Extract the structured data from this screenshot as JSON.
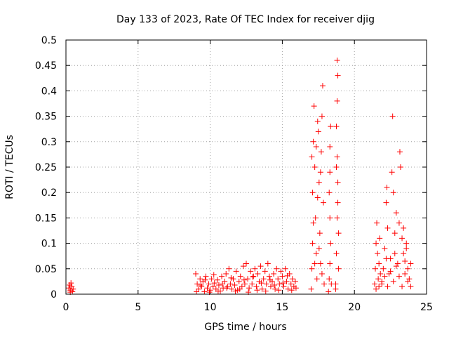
{
  "chart_data": {
    "type": "scatter",
    "title": "Day 133 of 2023, Rate Of TEC Index for receiver djig",
    "xlabel": "GPS time / hours",
    "ylabel": "ROTI / TECUs",
    "xlim": [
      0,
      25
    ],
    "ylim": [
      0,
      0.5
    ],
    "x_ticks": [
      "0",
      "5",
      "10",
      "15",
      "20",
      "25"
    ],
    "y_ticks": [
      "0",
      "0.05",
      "0.1",
      "0.15",
      "0.2",
      "0.25",
      "0.3",
      "0.35",
      "0.4",
      "0.45",
      "0.5"
    ],
    "grid": true,
    "marker": "+",
    "color": "#ff0000",
    "series": [
      {
        "points": [
          [
            0.2,
            0.012
          ],
          [
            0.25,
            0.018
          ],
          [
            0.3,
            0.008
          ],
          [
            0.35,
            0.022
          ],
          [
            0.4,
            0.015
          ],
          [
            0.45,
            0.005
          ],
          [
            0.5,
            0.01
          ],
          [
            0.3,
            0.004
          ],
          [
            9.0,
            0.04
          ],
          [
            9.1,
            0.02
          ],
          [
            9.2,
            0.01
          ],
          [
            9.3,
            0.03
          ],
          [
            9.4,
            0.015
          ],
          [
            9.5,
            0.025
          ],
          [
            9.6,
            0.005
          ],
          [
            9.7,
            0.035
          ],
          [
            9.8,
            0.012
          ],
          [
            9.9,
            0.02
          ],
          [
            10.0,
            0.008
          ],
          [
            10.1,
            0.03
          ],
          [
            10.2,
            0.015
          ],
          [
            10.3,
            0.022
          ],
          [
            10.4,
            0.01
          ],
          [
            10.5,
            0.028
          ],
          [
            10.6,
            0.018
          ],
          [
            10.7,
            0.006
          ],
          [
            10.8,
            0.035
          ],
          [
            10.9,
            0.012
          ],
          [
            11.0,
            0.025
          ],
          [
            11.1,
            0.04
          ],
          [
            11.2,
            0.015
          ],
          [
            11.3,
            0.05
          ],
          [
            11.4,
            0.02
          ],
          [
            11.5,
            0.01
          ],
          [
            11.6,
            0.03
          ],
          [
            11.7,
            0.018
          ],
          [
            11.8,
            0.045
          ],
          [
            11.9,
            0.008
          ],
          [
            12.0,
            0.025
          ],
          [
            12.1,
            0.035
          ],
          [
            12.2,
            0.015
          ],
          [
            12.3,
            0.055
          ],
          [
            12.4,
            0.02
          ],
          [
            12.5,
            0.06
          ],
          [
            12.6,
            0.03
          ],
          [
            12.7,
            0.012
          ],
          [
            12.8,
            0.045
          ],
          [
            12.9,
            0.02
          ],
          [
            13.0,
            0.035
          ],
          [
            13.1,
            0.05
          ],
          [
            13.2,
            0.015
          ],
          [
            13.3,
            0.04
          ],
          [
            13.4,
            0.025
          ],
          [
            13.5,
            0.055
          ],
          [
            13.6,
            0.01
          ],
          [
            13.7,
            0.03
          ],
          [
            13.8,
            0.045
          ],
          [
            13.9,
            0.02
          ],
          [
            14.0,
            0.06
          ],
          [
            14.1,
            0.035
          ],
          [
            14.2,
            0.015
          ],
          [
            14.3,
            0.025
          ],
          [
            14.4,
            0.04
          ],
          [
            14.5,
            0.01
          ],
          [
            14.6,
            0.05
          ],
          [
            14.7,
            0.03
          ],
          [
            14.8,
            0.02
          ],
          [
            14.9,
            0.045
          ],
          [
            15.0,
            0.035
          ],
          [
            15.1,
            0.015
          ],
          [
            15.2,
            0.05
          ],
          [
            15.3,
            0.025
          ],
          [
            15.4,
            0.01
          ],
          [
            15.5,
            0.04
          ],
          [
            15.6,
            0.02
          ],
          [
            15.7,
            0.03
          ],
          [
            15.8,
            0.015
          ],
          [
            15.9,
            0.025
          ],
          [
            9.05,
            0.005
          ],
          [
            9.35,
            0.018
          ],
          [
            9.65,
            0.028
          ],
          [
            9.95,
            0.004
          ],
          [
            10.25,
            0.038
          ],
          [
            10.55,
            0.006
          ],
          [
            10.85,
            0.02
          ],
          [
            11.15,
            0.012
          ],
          [
            11.45,
            0.032
          ],
          [
            11.75,
            0.006
          ],
          [
            12.05,
            0.01
          ],
          [
            12.35,
            0.028
          ],
          [
            12.65,
            0.004
          ],
          [
            12.95,
            0.034
          ],
          [
            13.25,
            0.008
          ],
          [
            13.55,
            0.022
          ],
          [
            13.85,
            0.006
          ],
          [
            14.15,
            0.028
          ],
          [
            14.45,
            0.018
          ],
          [
            14.75,
            0.008
          ],
          [
            15.05,
            0.022
          ],
          [
            15.35,
            0.036
          ],
          [
            15.65,
            0.008
          ],
          [
            15.95,
            0.012
          ],
          [
            17.0,
            0.01
          ],
          [
            17.05,
            0.05
          ],
          [
            17.1,
            0.1
          ],
          [
            17.1,
            0.2
          ],
          [
            17.15,
            0.3
          ],
          [
            17.2,
            0.37
          ],
          [
            17.25,
            0.25
          ],
          [
            17.3,
            0.15
          ],
          [
            17.35,
            0.08
          ],
          [
            17.4,
            0.03
          ],
          [
            17.45,
            0.34
          ],
          [
            17.5,
            0.32
          ],
          [
            17.55,
            0.22
          ],
          [
            17.6,
            0.12
          ],
          [
            17.65,
            0.06
          ],
          [
            17.7,
            0.28
          ],
          [
            17.75,
            0.35
          ],
          [
            17.8,
            0.41
          ],
          [
            17.85,
            0.18
          ],
          [
            17.9,
            0.02
          ],
          [
            17.05,
            0.27
          ],
          [
            17.15,
            0.14
          ],
          [
            17.25,
            0.06
          ],
          [
            17.35,
            0.29
          ],
          [
            17.45,
            0.19
          ],
          [
            17.55,
            0.09
          ],
          [
            17.65,
            0.24
          ],
          [
            17.75,
            0.04
          ],
          [
            18.2,
            0.005
          ],
          [
            18.25,
            0.03
          ],
          [
            18.3,
            0.06
          ],
          [
            18.35,
            0.1
          ],
          [
            18.3,
            0.15
          ],
          [
            18.25,
            0.2
          ],
          [
            18.3,
            0.24
          ],
          [
            18.35,
            0.33
          ],
          [
            18.3,
            0.29
          ],
          [
            18.4,
            0.02
          ],
          [
            18.7,
            0.02
          ],
          [
            18.75,
            0.08
          ],
          [
            18.8,
            0.15
          ],
          [
            18.85,
            0.22
          ],
          [
            18.8,
            0.27
          ],
          [
            18.75,
            0.33
          ],
          [
            18.8,
            0.38
          ],
          [
            18.85,
            0.43
          ],
          [
            18.8,
            0.46
          ],
          [
            18.9,
            0.05
          ],
          [
            18.7,
            0.01
          ],
          [
            18.9,
            0.12
          ],
          [
            18.85,
            0.18
          ],
          [
            18.75,
            0.25
          ],
          [
            21.4,
            0.02
          ],
          [
            21.45,
            0.05
          ],
          [
            21.5,
            0.1
          ],
          [
            21.55,
            0.14
          ],
          [
            21.6,
            0.08
          ],
          [
            21.65,
            0.03
          ],
          [
            21.7,
            0.06
          ],
          [
            21.75,
            0.11
          ],
          [
            21.8,
            0.04
          ],
          [
            21.9,
            0.02
          ],
          [
            22.0,
            0.05
          ],
          [
            22.1,
            0.09
          ],
          [
            22.2,
            0.18
          ],
          [
            22.25,
            0.21
          ],
          [
            22.3,
            0.13
          ],
          [
            22.4,
            0.04
          ],
          [
            22.5,
            0.07
          ],
          [
            22.6,
            0.24
          ],
          [
            22.65,
            0.35
          ],
          [
            22.7,
            0.2
          ],
          [
            22.8,
            0.12
          ],
          [
            22.9,
            0.16
          ],
          [
            23.0,
            0.06
          ],
          [
            23.1,
            0.14
          ],
          [
            23.15,
            0.28
          ],
          [
            23.2,
            0.25
          ],
          [
            23.3,
            0.11
          ],
          [
            23.4,
            0.08
          ],
          [
            23.5,
            0.04
          ],
          [
            23.6,
            0.09
          ],
          [
            23.7,
            0.05
          ],
          [
            23.8,
            0.03
          ],
          [
            23.9,
            0.06
          ],
          [
            21.5,
            0.01
          ],
          [
            21.7,
            0.015
          ],
          [
            21.9,
            0.025
          ],
          [
            22.1,
            0.035
          ],
          [
            22.3,
            0.015
          ],
          [
            22.5,
            0.045
          ],
          [
            22.7,
            0.025
          ],
          [
            22.9,
            0.055
          ],
          [
            23.1,
            0.035
          ],
          [
            23.3,
            0.015
          ],
          [
            23.5,
            0.065
          ],
          [
            23.7,
            0.025
          ],
          [
            23.9,
            0.015
          ],
          [
            22.2,
            0.07
          ],
          [
            22.8,
            0.08
          ],
          [
            23.4,
            0.13
          ],
          [
            23.6,
            0.1
          ]
        ]
      }
    ]
  }
}
